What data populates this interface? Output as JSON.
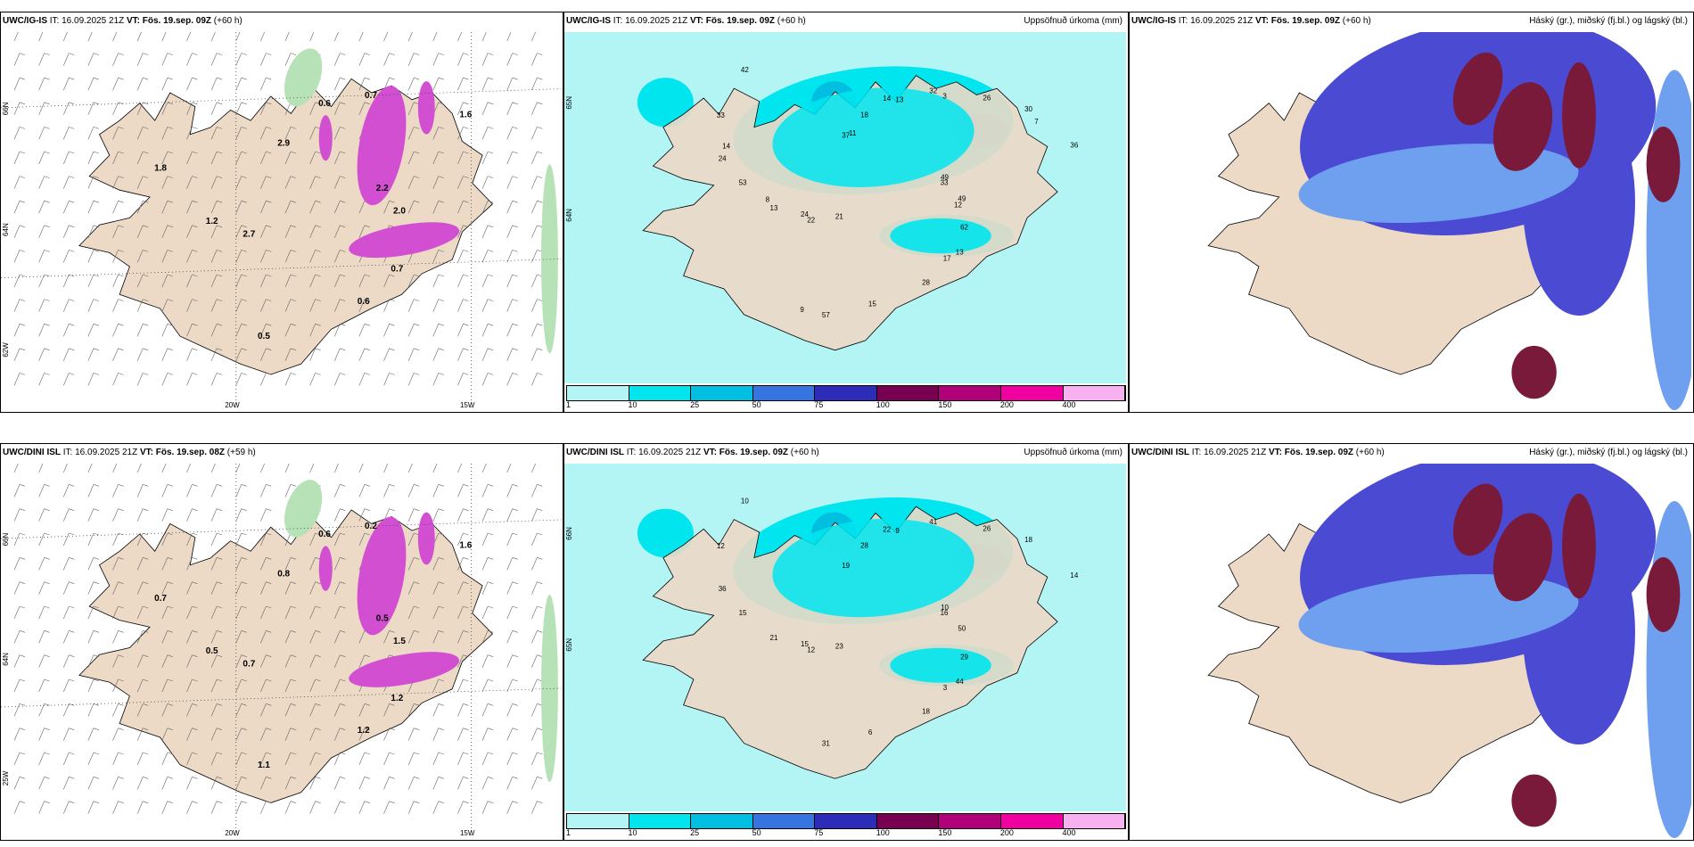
{
  "panels": [
    {
      "id": "p1",
      "title_model": "UWC/IG-IS",
      "title_it": "IT: 16.09.2025 21Z",
      "title_vt_label": "VT:",
      "title_vt": "Fös. 19.sep. 09Z",
      "title_lead": "(+60 h)",
      "right": "",
      "type": "wind",
      "lat_labels": [
        "66N",
        "64N",
        "62W"
      ],
      "lon_labels": [
        "20W",
        "15W"
      ],
      "values": [
        "2.2",
        "2.7",
        "0.6",
        "0.7",
        "1.8",
        "1.6",
        "0.5",
        "2.9",
        "2.0",
        "1.2",
        "0.7",
        "0.6"
      ]
    },
    {
      "id": "p2",
      "title_model": "UWC/IG-IS",
      "title_it": "IT: 16.09.2025 21Z",
      "title_vt_label": "VT:",
      "title_vt": "Fös. 19.sep. 09Z",
      "title_lead": "(+60 h)",
      "right": "Uppsöfnuð úrkoma (mm)",
      "type": "precip",
      "lat_labels": [
        "65N",
        "64N"
      ],
      "values": [
        "49",
        "22",
        "14",
        "13",
        "24",
        "30",
        "57",
        "37",
        "49",
        "13",
        "32",
        "28",
        "33",
        "36",
        "21",
        "18",
        "62",
        "53",
        "26",
        "15",
        "42",
        "33",
        "24",
        "13",
        "17",
        "14",
        "7",
        "9",
        "11",
        "12",
        "8",
        "3"
      ],
      "colorbar": [
        "1",
        "10",
        "25",
        "50",
        "75",
        "100",
        "150",
        "200",
        "400"
      ]
    },
    {
      "id": "p3",
      "title_model": "UWC/IG-IS",
      "title_it": "IT: 16.09.2025 21Z",
      "title_vt_label": "VT:",
      "title_vt": "Fös. 19.sep. 09Z",
      "title_lead": "(+60 h)",
      "right": "Háský (gr.), miðský (fj.bl.) og lágský (bl.)",
      "type": "cloud"
    },
    {
      "id": "p4",
      "title_model": "UWC/DINI ISL",
      "title_it": "IT: 16.09.2025 21Z",
      "title_vt_label": "VT:",
      "title_vt": "Fös. 19.sep. 08Z",
      "title_lead": "(+59 h)",
      "right": "",
      "type": "wind",
      "lat_labels": [
        "66N",
        "64N",
        "25W"
      ],
      "lon_labels": [
        "20W",
        "15W"
      ],
      "values": [
        "0.5",
        "0.7",
        "0.6",
        "1.2",
        "0.7",
        "1.6",
        "1.1",
        "0.8",
        "1.5",
        "0.5",
        "0.2",
        "1.2"
      ]
    },
    {
      "id": "p5",
      "title_model": "UWC/DINI ISL",
      "title_it": "IT: 16.09.2025 21Z",
      "title_vt_label": "VT:",
      "title_vt": "Fös. 19.sep. 09Z",
      "title_lead": "(+60 h)",
      "right": "Uppsöfnuð úrkoma (mm)",
      "type": "precip",
      "lat_labels": [
        "66N",
        "65N"
      ],
      "values": [
        "10",
        "12",
        "22",
        "44",
        "36",
        "18",
        "31",
        "19",
        "50",
        "21",
        "41",
        "18",
        "12",
        "14",
        "23",
        "28",
        "29",
        "15",
        "26",
        "6",
        "10",
        "16",
        "15",
        "9",
        "3"
      ],
      "colorbar": [
        "1",
        "10",
        "25",
        "50",
        "75",
        "100",
        "150",
        "200",
        "400"
      ]
    },
    {
      "id": "p6",
      "title_model": "UWC/DINI ISL",
      "title_it": "IT: 16.09.2025 21Z",
      "title_vt_label": "VT:",
      "title_vt": "Fös. 19.sep. 09Z",
      "title_lead": "(+60 h)",
      "right": "Háský (gr.), miðský (fj.bl.) og lágský (bl.)",
      "type": "cloud"
    }
  ],
  "colors": {
    "land": "#ecd9c6",
    "precip": [
      "#b3f4f4",
      "#00e5ee",
      "#00bfe0",
      "#3575e0",
      "#2c2cb8",
      "#770050",
      "#b0007a",
      "#f000a0",
      "#f7b0f0"
    ],
    "wind_precip_light": "#b7e2b7",
    "wind_precip_dark": "#2e8a2e",
    "wind_magenta": "#d24fd2",
    "cloud_high": "#7a1a3a",
    "cloud_mid": "#4a4ad2",
    "cloud_low": "#6fa0ef"
  }
}
